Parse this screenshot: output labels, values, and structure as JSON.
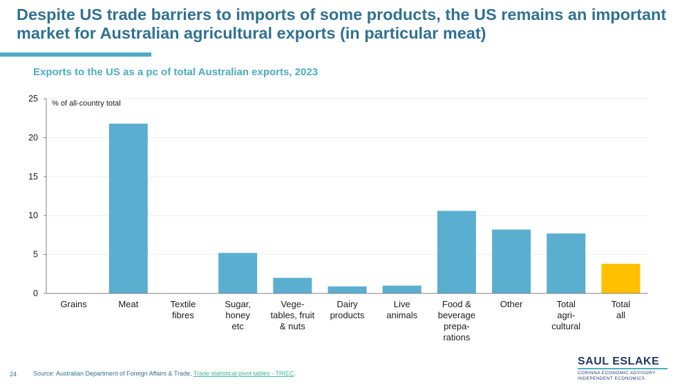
{
  "title": "Despite US trade barriers to imports of some products, the US remains an important market for Australian agricultural exports (in particular meat)",
  "page_number": "24",
  "source": {
    "prefix": "Source: Australian Department of Foreign Affairs & Trade, ",
    "link_text": "Trade statistical pivot tables - TRIEC",
    "suffix": "."
  },
  "brand": {
    "name": "SAUL ESLAKE",
    "line1": "CORINNA ECONOMIC ADVISORY",
    "line2": "INDEPENDENT ECONOMICS"
  },
  "colors": {
    "title": "#2f7193",
    "subtitle": "#4bacc6",
    "accent_rule": "#4bacc6",
    "bar": "#5aaed0",
    "highlight_bar": "#ffc000",
    "axis": "#7f7f7f",
    "gridline": "#eeeeee",
    "link": "#3cb39b"
  },
  "chart_data": {
    "type": "bar",
    "title": "Exports to the US as a pc of total Australian exports, 2023",
    "ylabel": "% of all-country total",
    "ylim": [
      0,
      25
    ],
    "yticks": [
      0,
      5,
      10,
      15,
      20,
      25
    ],
    "grid": true,
    "categories": [
      [
        "Grains"
      ],
      [
        "Meat"
      ],
      [
        "Textile",
        "fibres"
      ],
      [
        "Sugar,",
        "honey",
        "etc"
      ],
      [
        "Vege-",
        "tables, fruit",
        "& nuts"
      ],
      [
        "Dairy",
        "products"
      ],
      [
        "Live",
        "animals"
      ],
      [
        "Food &",
        "beverage",
        "prepa-",
        "rations"
      ],
      [
        "Other"
      ],
      [
        "Total",
        "agri-",
        "cultural"
      ],
      [
        "Total",
        "all"
      ]
    ],
    "values": [
      0,
      21.8,
      0,
      5.2,
      2.0,
      0.9,
      1.0,
      10.6,
      8.2,
      7.7,
      3.8
    ],
    "highlight_index": 10
  }
}
